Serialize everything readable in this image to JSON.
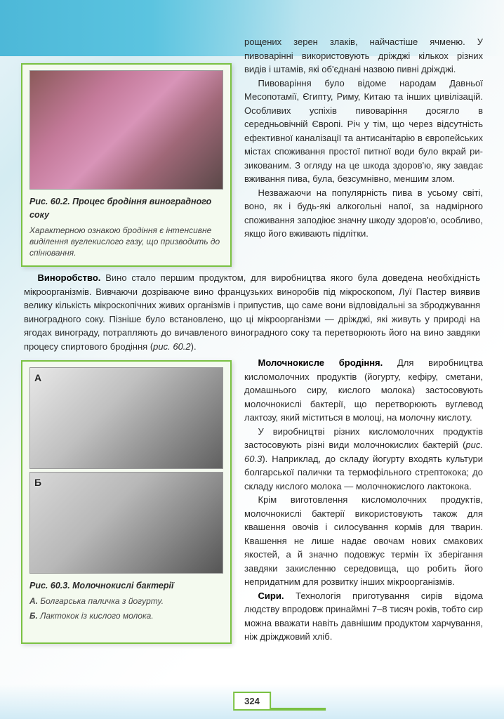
{
  "intro_top": "рощених зерен злаків, найчастіше ячменю. У пивоварінні використовують дріжджі кількох різних видів і штамів, які об'єднані назвою пив­ні дріжджі.",
  "p_brewing": "Пивоваріння було відоме народам Дав­ньої Месопотамії, Єгипту, Риму, Китаю та ін­ших цивілізацій. Особливих успіхів пивоварін­ня досягло в середньовічній Європі. Річ у тім, що через відсутність ефективної каналізації та антисанітарію в європейських містах спо­живання простої питної води було вкрай ри­зикованим. З огляду на це шкода здоров'ю, яку завдає вживання пива, була, безсумнівно, меншим злом.",
  "p_beer_harm": "Незважаючи на популярність пива в усьо­му світі, воно, як і будь-які алкогольні напої, за надмірного споживання заподіює значну шко­ду здоров'ю, особливо, якщо його вживають підлітки.",
  "fig1": {
    "title": "Рис. 60.2. Процес бродіння виноградного соку",
    "desc": "Характерною ознакою бродіння є інтенсивне виділення вуглекислого газу, що призводить до спінювання."
  },
  "section_wine": {
    "label": "Виноробство.",
    "text": " Вино стало першим продуктом, для виробництва якого була доведена необхідність мікроорганізмів. Вивчаючи дозріваюче вино французьких виноробів під мікроскопом, Луї Пастер виявив велику кількість мікроскопічних жи­вих організмів і припустив, що саме вони відповідальні за зброджування виноград­ного соку. Пізніше було встановлено, що ці мікроорганізми — дріжджі, які живуть у природі на ягодах винограду, потрапляють до вичавленого виноградного соку та перетворюють його на вино завдяки процесу спиртового бродіння (",
    "ref": "рис. 60.2",
    "tail": ")."
  },
  "section_lactic": {
    "label": "Молочнокисле бродіння.",
    "text": " Для виробни­цтва кисломолочних продуктів (йогурту, кефі­ру, сметани, домашнього сиру, кислого моло­ка) застосовують молочнокислі бактерії, що перетворюють вуглевод лактозу, який міститься в молоці, на молочну кислоту."
  },
  "p_lactic2_a": "У виробництві різних кисломолочних про­дуктів застосовують різні види молочнокислих бактерій (",
  "p_lactic2_ref": "рис. 60.3",
  "p_lactic2_b": "). Наприклад, до складу йо­гурту входять культури болгарської палички та термофільного стрептокока; до складу кисло­го молока — молочнокислого лактокока.",
  "p_lactic3": "Крім виготовлення кисломолочних продук­тів, молочнокислі бактерії використовують та­кож для квашення овочів і силосування кормів для тварин. Квашення не лише надає овочам нових смакових якостей, а й значно подовжує термін їх зберігання завдяки закисленню се­редовища, що робить його непридатним для розвитку інших мікроорганізмів.",
  "section_cheese": {
    "label": "Сири.",
    "text": " Технологія приготування сирів відо­ма людству впродовж принаймні 7–8 тисяч ро­ків, тобто сир можна вважати навіть давнішим продуктом харчування, ніж дріжджовий хліб."
  },
  "fig2": {
    "labelA": "А",
    "labelB": "Б",
    "title": "Рис. 60.3. Молочнокислі бактерії",
    "subA_label": "А.",
    "subA_text": " Болгарська паличка з йогурту.",
    "subB_label": "Б.",
    "subB_text": " Лактокок із кислого молока."
  },
  "page_number": "324"
}
